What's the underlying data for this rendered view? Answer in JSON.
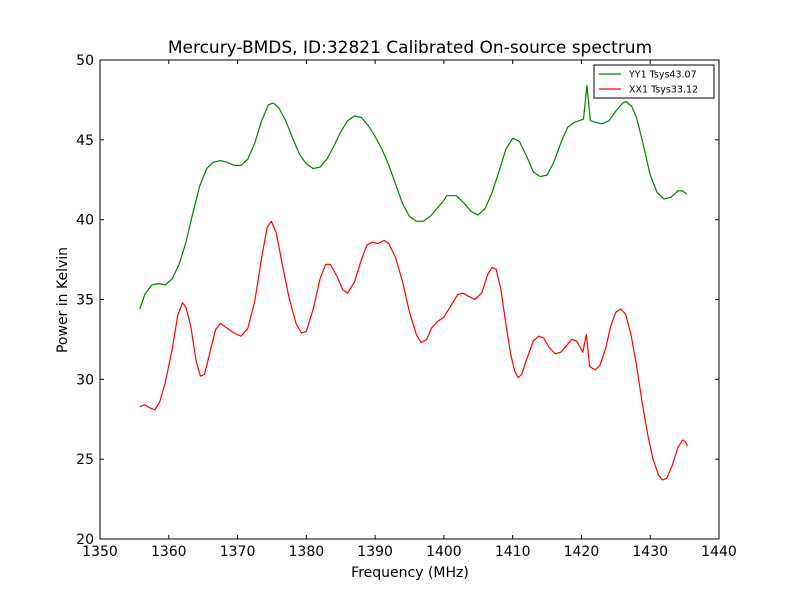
{
  "chart_data": {
    "type": "line",
    "title": "Mercury-BMDS, ID:32821 Calibrated On-source spectrum",
    "xlabel": "Frequency (MHz)",
    "ylabel": "Power in Kelvin",
    "xlim": [
      1350,
      1440
    ],
    "ylim": [
      20,
      50
    ],
    "xticks": [
      1350,
      1360,
      1370,
      1380,
      1390,
      1400,
      1410,
      1420,
      1430,
      1440
    ],
    "yticks": [
      20,
      25,
      30,
      35,
      40,
      45,
      50
    ],
    "grid": false,
    "legend_position": "top-right",
    "series": [
      {
        "name": "YY1 Tsys43.07",
        "color": "#008000",
        "points": [
          [
            1355.8,
            34.4
          ],
          [
            1356.5,
            35.3
          ],
          [
            1357.5,
            35.9
          ],
          [
            1358.5,
            36.0
          ],
          [
            1359.5,
            35.9
          ],
          [
            1360.5,
            36.3
          ],
          [
            1361.5,
            37.2
          ],
          [
            1362.5,
            38.6
          ],
          [
            1363.5,
            40.4
          ],
          [
            1364.5,
            42.1
          ],
          [
            1365.5,
            43.2
          ],
          [
            1366.5,
            43.6
          ],
          [
            1367.5,
            43.7
          ],
          [
            1368.5,
            43.6
          ],
          [
            1369.5,
            43.4
          ],
          [
            1370.5,
            43.4
          ],
          [
            1371.5,
            43.8
          ],
          [
            1372.5,
            44.8
          ],
          [
            1373.5,
            46.2
          ],
          [
            1374.5,
            47.2
          ],
          [
            1375.2,
            47.3
          ],
          [
            1376,
            47.0
          ],
          [
            1377,
            46.2
          ],
          [
            1378,
            45.1
          ],
          [
            1379,
            44.1
          ],
          [
            1380,
            43.5
          ],
          [
            1381,
            43.2
          ],
          [
            1382,
            43.3
          ],
          [
            1383,
            43.8
          ],
          [
            1384,
            44.6
          ],
          [
            1385,
            45.5
          ],
          [
            1386,
            46.2
          ],
          [
            1387,
            46.5
          ],
          [
            1388,
            46.4
          ],
          [
            1389,
            45.9
          ],
          [
            1390,
            45.2
          ],
          [
            1391,
            44.4
          ],
          [
            1392,
            43.4
          ],
          [
            1393,
            42.2
          ],
          [
            1394,
            41.0
          ],
          [
            1395,
            40.2
          ],
          [
            1396,
            39.9
          ],
          [
            1397,
            39.9
          ],
          [
            1398,
            40.2
          ],
          [
            1399,
            40.7
          ],
          [
            1400,
            41.2
          ],
          [
            1400.4,
            41.5
          ],
          [
            1401,
            41.5
          ],
          [
            1401.8,
            41.5
          ],
          [
            1403,
            41.0
          ],
          [
            1404,
            40.5
          ],
          [
            1405,
            40.3
          ],
          [
            1406,
            40.7
          ],
          [
            1407,
            41.7
          ],
          [
            1408,
            43.0
          ],
          [
            1409,
            44.4
          ],
          [
            1410,
            45.1
          ],
          [
            1411,
            44.9
          ],
          [
            1412,
            44.0
          ],
          [
            1413,
            43.0
          ],
          [
            1414,
            42.7
          ],
          [
            1415,
            42.8
          ],
          [
            1416,
            43.6
          ],
          [
            1417,
            44.8
          ],
          [
            1418,
            45.8
          ],
          [
            1419,
            46.1
          ],
          [
            1420.3,
            46.3
          ],
          [
            1420.8,
            48.4
          ],
          [
            1421.3,
            46.2
          ],
          [
            1422,
            46.1
          ],
          [
            1423,
            46.0
          ],
          [
            1424,
            46.2
          ],
          [
            1425,
            46.8
          ],
          [
            1426,
            47.3
          ],
          [
            1426.5,
            47.4
          ],
          [
            1427.3,
            47.1
          ],
          [
            1428,
            46.4
          ],
          [
            1429,
            44.7
          ],
          [
            1430,
            42.8
          ],
          [
            1431,
            41.7
          ],
          [
            1432,
            41.3
          ],
          [
            1433,
            41.4
          ],
          [
            1434,
            41.8
          ],
          [
            1434.7,
            41.8
          ],
          [
            1435.3,
            41.6
          ]
        ]
      },
      {
        "name": "XX1 Tsys33.12",
        "color": "#ff0000",
        "points": [
          [
            1355.8,
            28.3
          ],
          [
            1356.5,
            28.4
          ],
          [
            1357.3,
            28.2
          ],
          [
            1358,
            28.1
          ],
          [
            1358.7,
            28.6
          ],
          [
            1359.5,
            29.8
          ],
          [
            1360.5,
            31.9
          ],
          [
            1361.3,
            34.0
          ],
          [
            1362,
            34.8
          ],
          [
            1362.5,
            34.5
          ],
          [
            1363.2,
            33.3
          ],
          [
            1364,
            31.1
          ],
          [
            1364.6,
            30.2
          ],
          [
            1365.2,
            30.3
          ],
          [
            1366,
            31.7
          ],
          [
            1366.8,
            33.1
          ],
          [
            1367.5,
            33.5
          ],
          [
            1368.5,
            33.2
          ],
          [
            1369.5,
            32.9
          ],
          [
            1370.5,
            32.7
          ],
          [
            1371.5,
            33.2
          ],
          [
            1372.5,
            34.9
          ],
          [
            1373.5,
            37.6
          ],
          [
            1374.3,
            39.5
          ],
          [
            1374.9,
            39.9
          ],
          [
            1375.6,
            39.2
          ],
          [
            1376.5,
            37.2
          ],
          [
            1377.5,
            35.1
          ],
          [
            1378.5,
            33.5
          ],
          [
            1379.3,
            32.9
          ],
          [
            1380,
            33.0
          ],
          [
            1381,
            34.4
          ],
          [
            1382,
            36.3
          ],
          [
            1382.8,
            37.2
          ],
          [
            1383.5,
            37.2
          ],
          [
            1384.5,
            36.4
          ],
          [
            1385.3,
            35.6
          ],
          [
            1386,
            35.4
          ],
          [
            1387,
            36.1
          ],
          [
            1388,
            37.5
          ],
          [
            1388.8,
            38.4
          ],
          [
            1389.6,
            38.6
          ],
          [
            1390.4,
            38.5
          ],
          [
            1391.3,
            38.7
          ],
          [
            1392,
            38.5
          ],
          [
            1393,
            37.6
          ],
          [
            1394,
            36.1
          ],
          [
            1395,
            34.2
          ],
          [
            1396,
            32.8
          ],
          [
            1396.7,
            32.3
          ],
          [
            1397.5,
            32.5
          ],
          [
            1398.2,
            33.2
          ],
          [
            1399,
            33.6
          ],
          [
            1400,
            33.9
          ],
          [
            1401,
            34.6
          ],
          [
            1402,
            35.3
          ],
          [
            1402.8,
            35.4
          ],
          [
            1403.6,
            35.2
          ],
          [
            1404.5,
            35.0
          ],
          [
            1405.5,
            35.4
          ],
          [
            1406.4,
            36.6
          ],
          [
            1407,
            37.0
          ],
          [
            1407.6,
            36.9
          ],
          [
            1408.3,
            35.6
          ],
          [
            1409,
            33.5
          ],
          [
            1409.7,
            31.6
          ],
          [
            1410.3,
            30.5
          ],
          [
            1410.8,
            30.1
          ],
          [
            1411.3,
            30.3
          ],
          [
            1412,
            31.2
          ],
          [
            1413,
            32.4
          ],
          [
            1413.8,
            32.7
          ],
          [
            1414.5,
            32.6
          ],
          [
            1415.3,
            32.0
          ],
          [
            1416.2,
            31.6
          ],
          [
            1417,
            31.7
          ],
          [
            1417.8,
            32.1
          ],
          [
            1418.6,
            32.5
          ],
          [
            1419.3,
            32.4
          ],
          [
            1420.2,
            31.7
          ],
          [
            1420.7,
            32.8
          ],
          [
            1421.2,
            30.8
          ],
          [
            1422,
            30.6
          ],
          [
            1422.7,
            30.9
          ],
          [
            1423.5,
            31.9
          ],
          [
            1424.3,
            33.4
          ],
          [
            1425,
            34.2
          ],
          [
            1425.7,
            34.4
          ],
          [
            1426.4,
            34.1
          ],
          [
            1427.2,
            32.8
          ],
          [
            1428,
            30.9
          ],
          [
            1428.8,
            28.6
          ],
          [
            1429.6,
            26.6
          ],
          [
            1430.4,
            25.0
          ],
          [
            1431.2,
            24.0
          ],
          [
            1431.8,
            23.7
          ],
          [
            1432.4,
            23.8
          ],
          [
            1433.2,
            24.6
          ],
          [
            1434,
            25.7
          ],
          [
            1434.7,
            26.2
          ],
          [
            1435.1,
            26.1
          ],
          [
            1435.4,
            25.8
          ]
        ]
      }
    ]
  }
}
